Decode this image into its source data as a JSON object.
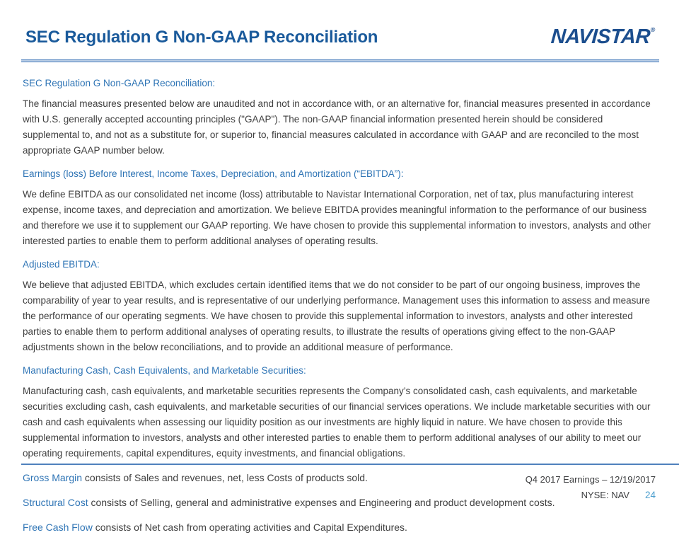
{
  "header": {
    "title": "SEC Regulation G Non-GAAP Reconciliation",
    "logo_text": "NAVISTAR",
    "logo_mark": "®"
  },
  "sections": [
    {
      "heading": "SEC Regulation G Non-GAAP Reconciliation:",
      "body": "The financial measures presented below are unaudited and not in accordance with, or an alternative for, financial measures presented in accordance with U.S. generally accepted accounting principles (\"GAAP\"). The non-GAAP financial information presented herein should be considered supplemental to, and not as a substitute for, or superior to, financial measures calculated in accordance with GAAP and are reconciled to the most appropriate GAAP number below."
    },
    {
      "heading": "Earnings (loss) Before Interest, Income Taxes, Depreciation, and Amortization (“EBITDA”):",
      "body": "We define EBITDA as our consolidated net income (loss) attributable to Navistar International Corporation, net of tax, plus manufacturing interest expense, income taxes, and depreciation and amortization. We believe EBITDA provides meaningful information to the performance of our business and therefore we use it to supplement our GAAP reporting. We have chosen to provide this supplemental information to investors, analysts and other interested parties to enable them to perform additional analyses of operating results."
    },
    {
      "heading": "Adjusted EBITDA:",
      "body": "We believe that adjusted EBITDA, which excludes certain identified items that we do not consider to be part of our ongoing business, improves the comparability of year to year results, and is representative of our underlying performance. Management uses this information to assess and measure the performance of our operating segments. We have chosen to provide this supplemental information to investors, analysts and other interested parties to enable them to perform additional analyses of operating results, to illustrate the results of operations giving effect to the non-GAAP adjustments shown in the below reconciliations, and to provide an additional measure of performance."
    },
    {
      "heading": "Manufacturing Cash, Cash Equivalents, and Marketable Securities:",
      "body": "Manufacturing cash, cash equivalents, and marketable securities represents the Company’s consolidated cash, cash equivalents, and marketable securities excluding cash, cash equivalents, and marketable securities of our financial services operations. We include marketable securities with our cash and cash equivalents when assessing our liquidity position as our investments are highly liquid in nature. We have chosen to provide this supplemental information to investors, analysts and other interested parties to enable them to perform additional analyses of our ability to meet our operating requirements, capital expenditures, equity investments, and financial obligations."
    }
  ],
  "definitions": [
    {
      "term": "Gross Margin",
      "text": " consists of Sales and revenues, net, less Costs of products sold."
    },
    {
      "term": "Structural Cost",
      "text": " consists of Selling, general and administrative expenses and Engineering and product development costs."
    },
    {
      "term": "Free Cash Flow",
      "text": " consists of Net cash from operating activities and Capital Expenditures."
    }
  ],
  "footer": {
    "earnings_label": "Q4 2017 Earnings – 12/19/2017",
    "ticker_label": "NYSE: NAV",
    "page_number": "24"
  },
  "colors": {
    "title_blue": "#1a5a9b",
    "logo_blue": "#1c4e8e",
    "heading_blue": "#2e74b5",
    "body_gray": "#3f3f3f",
    "rule_blue": "#4f81bd",
    "rule_light_blue": "#b9cde5",
    "page_number_blue": "#4d9fce"
  }
}
